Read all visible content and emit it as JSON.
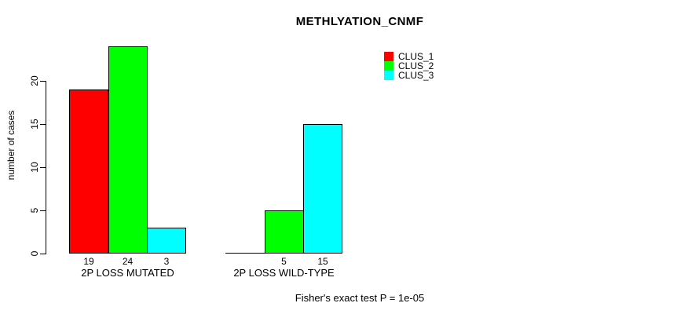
{
  "title": "METHLYATION_CNMF",
  "footnote": "Fisher's exact test P = 1e-05",
  "colors": {
    "background": "#FFFFFF",
    "axis": "#000000",
    "clus_1": "#FF0000",
    "clus_2": "#00FF00",
    "clus_3": "#00FFFF"
  },
  "chart_data": {
    "type": "bar",
    "title": "METHLYATION_CNMF",
    "xlabel": "",
    "ylabel": "number of cases",
    "ylim": [
      0,
      24
    ],
    "yticks": [
      0,
      5,
      10,
      15,
      20
    ],
    "grid": false,
    "legend_position": "top-right-inside",
    "categories": [
      "2P LOSS MUTATED",
      "2P LOSS WILD-TYPE"
    ],
    "series": [
      {
        "name": "CLUS_1",
        "color": "#FF0000",
        "values": [
          19,
          0
        ]
      },
      {
        "name": "CLUS_2",
        "color": "#00FF00",
        "values": [
          24,
          5
        ]
      },
      {
        "name": "CLUS_3",
        "color": "#00FFFF",
        "values": [
          3,
          15
        ]
      }
    ],
    "bar_value_labels": [
      [
        "19",
        "24",
        "3"
      ],
      [
        "",
        "5",
        "15"
      ]
    ],
    "annotation": "Fisher's exact test P = 1e-05"
  }
}
